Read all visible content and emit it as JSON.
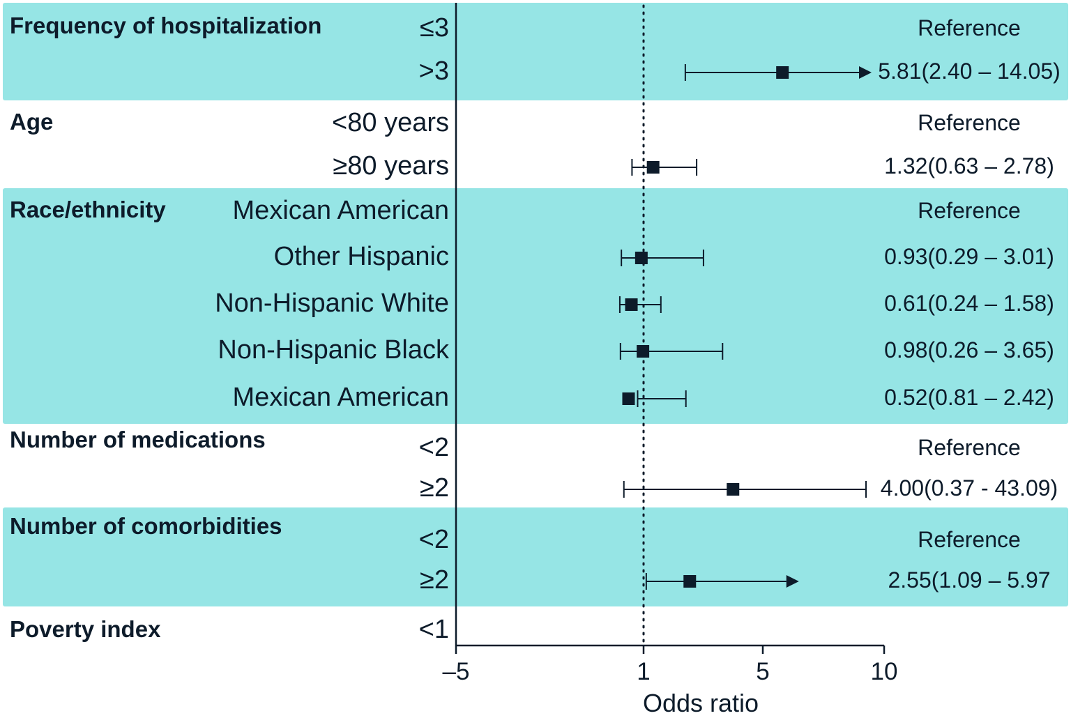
{
  "colors": {
    "band": "#96e5e5",
    "ink": "#0d1b2a"
  },
  "chart_data": {
    "type": "forest",
    "xlabel": "Odds ratio",
    "xticks": [
      -5,
      1,
      5,
      10
    ],
    "xlim": [
      -5,
      10
    ],
    "reference_line": 1,
    "groups": [
      {
        "name": "Frequency of hospitalization",
        "shaded": true,
        "rows": [
          {
            "level": "≤3",
            "label": "Reference"
          },
          {
            "level": ">3",
            "label": "5.81(2.40 – 14.05)",
            "or": 5.81,
            "lo": 2.4,
            "hi": 14.05,
            "arrow": true
          }
        ]
      },
      {
        "name": "Age",
        "shaded": false,
        "rows": [
          {
            "level": "<80 years",
            "label": "Reference"
          },
          {
            "level": "≥80 years",
            "label": "1.32(0.63 – 2.78)",
            "or": 1.32,
            "lo": 0.63,
            "hi": 2.78
          }
        ]
      },
      {
        "name": "Race/ethnicity",
        "shaded": true,
        "rows": [
          {
            "level": "Mexican American",
            "label": "Reference"
          },
          {
            "level": "Other Hispanic",
            "label": "0.93(0.29 – 3.01)",
            "or": 0.93,
            "lo": 0.29,
            "hi": 3.01
          },
          {
            "level": "Non-Hispanic White",
            "label": "0.61(0.24 – 1.58)",
            "or": 0.61,
            "lo": 0.24,
            "hi": 1.58
          },
          {
            "level": "Non-Hispanic Black",
            "label": "0.98(0.26 – 3.65)",
            "or": 0.98,
            "lo": 0.26,
            "hi": 3.65
          },
          {
            "level": "Mexican American",
            "label": "0.52(0.81 – 2.42)",
            "or": 0.52,
            "lo": 0.81,
            "hi": 2.42
          }
        ]
      },
      {
        "name": "Number of medications",
        "shaded": false,
        "rows": [
          {
            "level": "<2",
            "label": "Reference"
          },
          {
            "level": "≥2",
            "label": "4.00(0.37 - 43.09)",
            "or": 4.0,
            "lo": 0.37,
            "hi": 43.09
          }
        ]
      },
      {
        "name": "Number of comorbidities",
        "shaded": true,
        "rows": [
          {
            "level": "<2",
            "label": "Reference"
          },
          {
            "level": "≥2",
            "label": "2.55(1.09 – 5.97",
            "or": 2.55,
            "lo": 1.09,
            "hi": 5.97,
            "arrow": true
          }
        ]
      },
      {
        "name": "Poverty index",
        "shaded": false,
        "rows": [
          {
            "level": "<1"
          }
        ]
      }
    ]
  }
}
